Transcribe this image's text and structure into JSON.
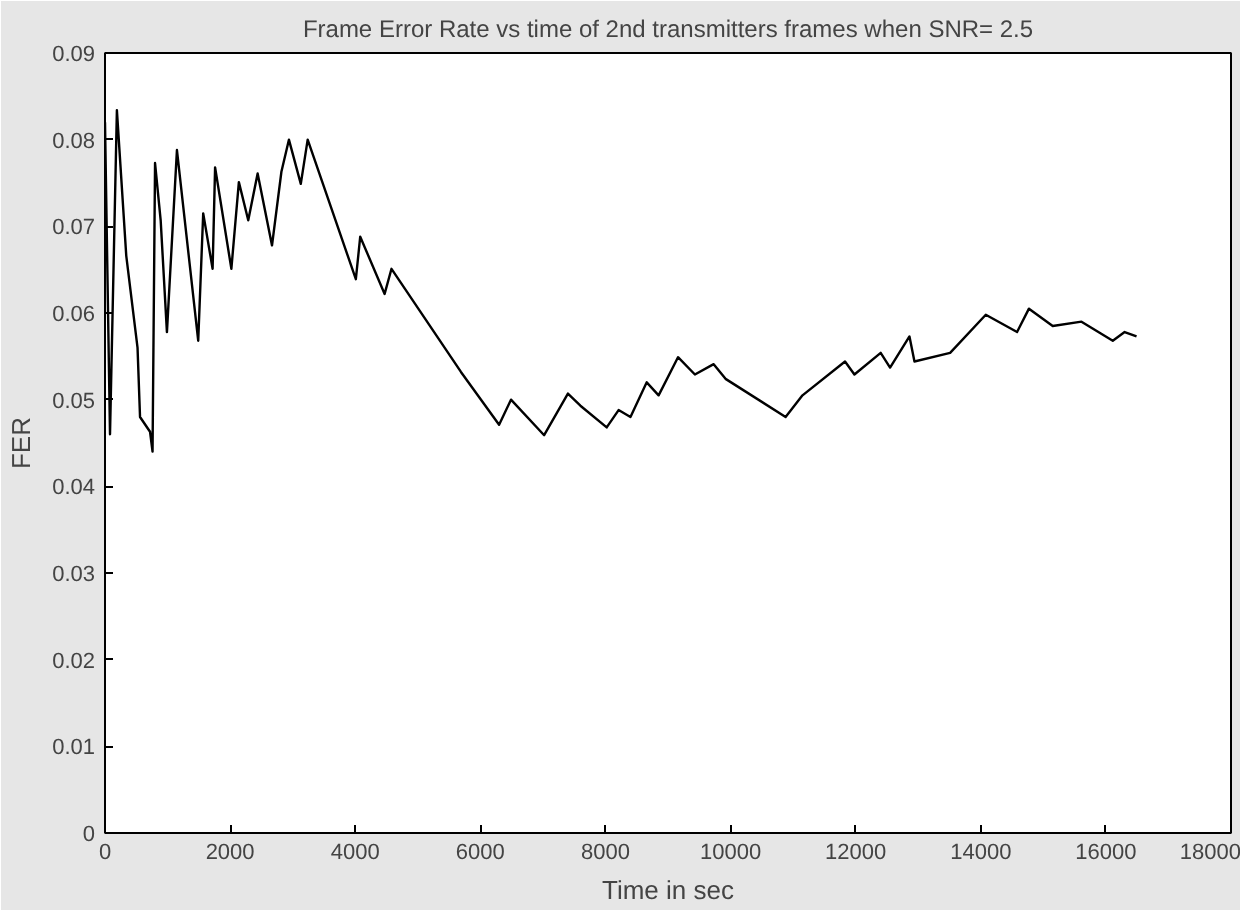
{
  "chart_data": {
    "type": "line",
    "title": "Frame Error Rate vs time of 2nd transmitters frames when SNR= 2.5",
    "xlabel": "Time in sec",
    "ylabel": "FER",
    "x": [
      0,
      80,
      190,
      340,
      520,
      560,
      720,
      760,
      800,
      890,
      990,
      1150,
      1490,
      1570,
      1720,
      1760,
      2020,
      2140,
      2290,
      2440,
      2670,
      2820,
      2940,
      3130,
      3240,
      4010,
      4080,
      4470,
      4580,
      5690,
      6300,
      6490,
      7020,
      7400,
      7600,
      8020,
      8210,
      8400,
      8660,
      8850,
      9160,
      9430,
      9730,
      9920,
      10880,
      11150,
      11830,
      11980,
      12400,
      12550,
      12860,
      12940,
      13510,
      14080,
      14580,
      14770,
      15150,
      15610,
      16110,
      16300,
      16490
    ],
    "series": [
      {
        "color": "#000000",
        "values": [
          0.082,
          0.046,
          0.0834,
          0.0666,
          0.056,
          0.048,
          0.0463,
          0.044,
          0.0773,
          0.0707,
          0.0578,
          0.0788,
          0.0568,
          0.0715,
          0.0651,
          0.0768,
          0.0651,
          0.0751,
          0.0707,
          0.0761,
          0.0678,
          0.0763,
          0.08,
          0.0749,
          0.08,
          0.0639,
          0.0688,
          0.0622,
          0.0651,
          0.0532,
          0.0471,
          0.05,
          0.0459,
          0.0507,
          0.0493,
          0.0468,
          0.0488,
          0.048,
          0.052,
          0.0505,
          0.0549,
          0.0529,
          0.0541,
          0.0524,
          0.048,
          0.0505,
          0.0544,
          0.0529,
          0.0554,
          0.0537,
          0.0573,
          0.0544,
          0.0554,
          0.0598,
          0.0578,
          0.0605,
          0.0585,
          0.059,
          0.0568,
          0.0578,
          0.0573
        ]
      }
    ],
    "xlim": [
      0,
      18000
    ],
    "ylim": [
      0,
      0.09
    ],
    "xticks": [
      0,
      2000,
      4000,
      6000,
      8000,
      10000,
      12000,
      14000,
      16000,
      18000
    ],
    "yticks": [
      0,
      0.01,
      0.02,
      0.03,
      0.04,
      0.05,
      0.06,
      0.07,
      0.08,
      0.09
    ],
    "grid": false,
    "marker": "none",
    "line_style": "solid"
  }
}
